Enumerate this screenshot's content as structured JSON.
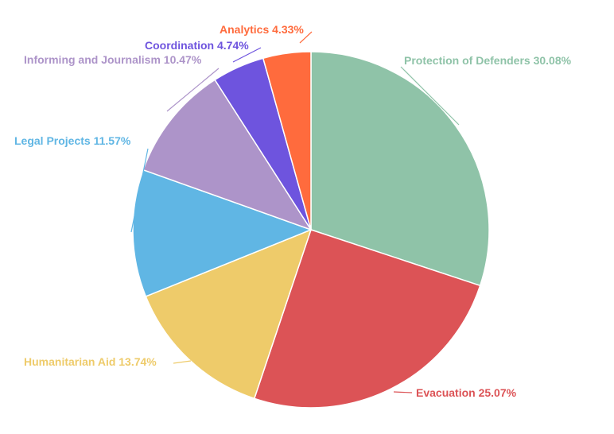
{
  "chart_data": {
    "type": "pie",
    "title": "",
    "start_angle_deg": 0,
    "direction": "clockwise",
    "slices": [
      {
        "name": "Protection of Defenders",
        "value": 30.08,
        "label": "Protection of Defenders 30.08%",
        "color": "#8FC3A8"
      },
      {
        "name": "Evacuation",
        "value": 25.07,
        "label": "Evacuation 25.07%",
        "color": "#DC5356"
      },
      {
        "name": "Humanitarian Aid",
        "value": 13.74,
        "label": "Humanitarian Aid 13.74%",
        "color": "#EECB6A"
      },
      {
        "name": "Legal Projects",
        "value": 11.57,
        "label": "Legal Projects 11.57%",
        "color": "#60B6E4"
      },
      {
        "name": "Informing and Journalism",
        "value": 10.47,
        "label": "Informing and Journalism 10.47%",
        "color": "#AD94C9"
      },
      {
        "name": "Coordination",
        "value": 4.74,
        "label": "Coordination 4.74%",
        "color": "#6E54DE"
      },
      {
        "name": "Analytics",
        "value": 4.33,
        "label": "Analytics 4.33%",
        "color": "#FF6B3D"
      }
    ]
  }
}
